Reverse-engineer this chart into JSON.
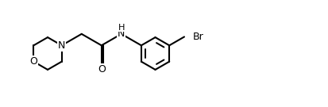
{
  "background_color": "#ffffff",
  "line_color": "#000000",
  "line_width": 1.5,
  "font_size": 9.0,
  "figsize": [
    4.13,
    1.35
  ],
  "dpi": 100,
  "xlim": [
    -0.3,
    10.8
  ],
  "ylim": [
    0.2,
    3.8
  ]
}
